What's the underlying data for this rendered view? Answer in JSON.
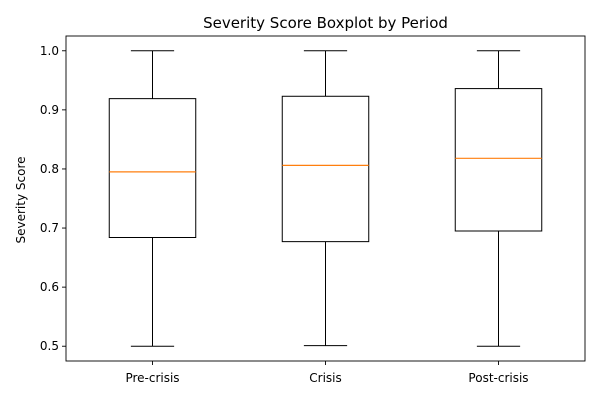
{
  "chart_data": {
    "type": "box",
    "title": "Severity Score Boxplot by Period",
    "xlabel": "",
    "ylabel": "Severity Score",
    "categories": [
      "Pre-crisis",
      "Crisis",
      "Post-crisis"
    ],
    "boxes": [
      {
        "label": "Pre-crisis",
        "whisker_low": 0.5,
        "q1": 0.684,
        "median": 0.795,
        "q3": 0.919,
        "whisker_high": 1.0
      },
      {
        "label": "Crisis",
        "whisker_low": 0.501,
        "q1": 0.677,
        "median": 0.806,
        "q3": 0.923,
        "whisker_high": 1.0
      },
      {
        "label": "Post-crisis",
        "whisker_low": 0.5,
        "q1": 0.695,
        "median": 0.818,
        "q3": 0.936,
        "whisker_high": 1.0
      }
    ],
    "ylim": [
      0.475,
      1.025
    ],
    "yticks": [
      0.5,
      0.6,
      0.7,
      0.8,
      0.9,
      1.0
    ],
    "ytick_labels": [
      "0.5",
      "0.6",
      "0.7",
      "0.8",
      "0.9",
      "1.0"
    ],
    "grid": false,
    "colors": {
      "box": "#000000",
      "median": "#ff7f0e",
      "axes": "#000000",
      "background": "#ffffff"
    }
  }
}
